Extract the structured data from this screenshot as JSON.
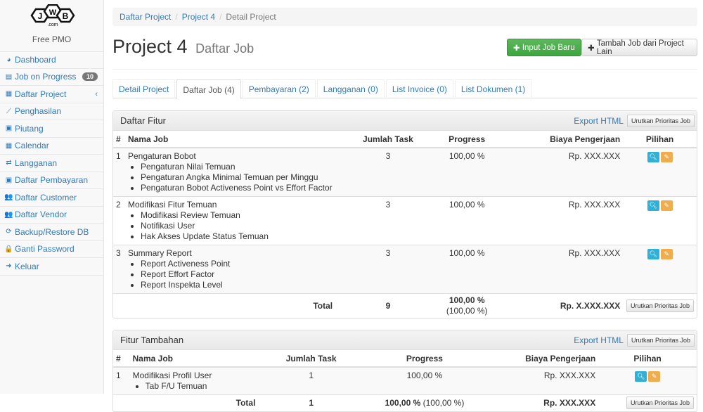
{
  "sidebar": {
    "logo_text": "JWB.com",
    "subtitle": "Free PMO",
    "items": [
      {
        "label": "Dashboard",
        "icon": "dashboard-icon",
        "glyph": "◕"
      },
      {
        "label": "Job on Progress",
        "icon": "tasks-icon",
        "glyph": "▤",
        "badge": "10"
      },
      {
        "label": "Daftar Project",
        "icon": "table-icon",
        "glyph": "▦",
        "chevron": "‹"
      },
      {
        "label": "Penghasilan",
        "icon": "line-chart-icon",
        "glyph": "⟋"
      },
      {
        "label": "Piutang",
        "icon": "money-icon",
        "glyph": "▣"
      },
      {
        "label": "Calendar",
        "icon": "calendar-icon",
        "glyph": "▦"
      },
      {
        "label": "Langganan",
        "icon": "retweet-icon",
        "glyph": "⇄"
      },
      {
        "label": "Daftar Pembayaran",
        "icon": "money-icon",
        "glyph": "▣"
      },
      {
        "label": "Daftar Customer",
        "icon": "users-icon",
        "glyph": "👥"
      },
      {
        "label": "Daftar Vendor",
        "icon": "users-icon",
        "glyph": "👥"
      },
      {
        "label": "Backup/Restore DB",
        "icon": "refresh-icon",
        "glyph": "⟳"
      },
      {
        "label": "Ganti Password",
        "icon": "lock-icon",
        "glyph": "🔒"
      },
      {
        "label": "Keluar",
        "icon": "sign-out-icon",
        "glyph": "➜"
      }
    ]
  },
  "breadcrumb": [
    "Daftar Project",
    "Project 4",
    "Detail Project"
  ],
  "header": {
    "title": "Project 4",
    "subtitle": "Daftar Job",
    "btn_new": "Input Job Baru",
    "btn_add": "Tambah Job dari Project Lain"
  },
  "tabs": [
    "Detail Project",
    "Daftar Job (4)",
    "Pembayaran (2)",
    "Langganan (0)",
    "List Invoice (0)",
    "List Dokumen (1)"
  ],
  "colors": {
    "primary": "#337ab7",
    "success": "#5cb85c",
    "info": "#31b0d5",
    "warning": "#f0ad4e"
  },
  "fitur": {
    "title": "Daftar Fitur",
    "export": "Export HTML",
    "sort": "Urutkan Prioritas Job",
    "columns": [
      "#",
      "Nama Job",
      "Jumlah Task",
      "Progress",
      "Biaya Pengerjaan",
      "Pilihan"
    ],
    "rows": [
      {
        "no": "1",
        "name": "Pengaturan Bobot",
        "tasks": [
          "Pengaturan Nilai Temuan",
          "Pengaturan Angka Minimal Temuan per Minggu",
          "Pengaturan Bobot Activeness Point vs Effort Factor"
        ],
        "count": "3",
        "progress": "100,00 %",
        "cost": "Rp. XXX.XXX"
      },
      {
        "no": "2",
        "name": "Modifikasi Fitur Temuan",
        "tasks": [
          "Modifikasi Review Temuan",
          "Notifikasi User",
          "Hak Akses Update Status Temuan"
        ],
        "count": "3",
        "progress": "100,00 %",
        "cost": "Rp. XXX.XXX"
      },
      {
        "no": "3",
        "name": "Summary Report",
        "tasks": [
          "Report Activeness Point",
          "Report Effort Factor",
          "Report Inspekta Level"
        ],
        "count": "3",
        "progress": "100,00 %",
        "cost": "Rp. XXX.XXX"
      }
    ],
    "total": {
      "label": "Total",
      "count": "9",
      "progress": "100,00 %",
      "progress_sub": "(100,00 %)",
      "cost": "Rp. X.XXX.XXX"
    }
  },
  "tambahan": {
    "title": "Fitur Tambahan",
    "export": "Export HTML",
    "sort": "Urutkan Prioritas Job",
    "columns": [
      "#",
      "Nama Job",
      "Jumlah Task",
      "Progress",
      "Biaya Pengerjaan",
      "Pilihan"
    ],
    "rows": [
      {
        "no": "1",
        "name": "Modifikasi Profil User",
        "tasks": [
          "Tab F/U Temuan"
        ],
        "count": "1",
        "progress": "100,00 %",
        "cost": "Rp. XXX.XXX"
      }
    ],
    "total": {
      "label": "Total",
      "count": "1",
      "progress": "100,00 %",
      "progress_sub": "(100,00 %)",
      "cost": "Rp. XXX.XXX"
    }
  }
}
